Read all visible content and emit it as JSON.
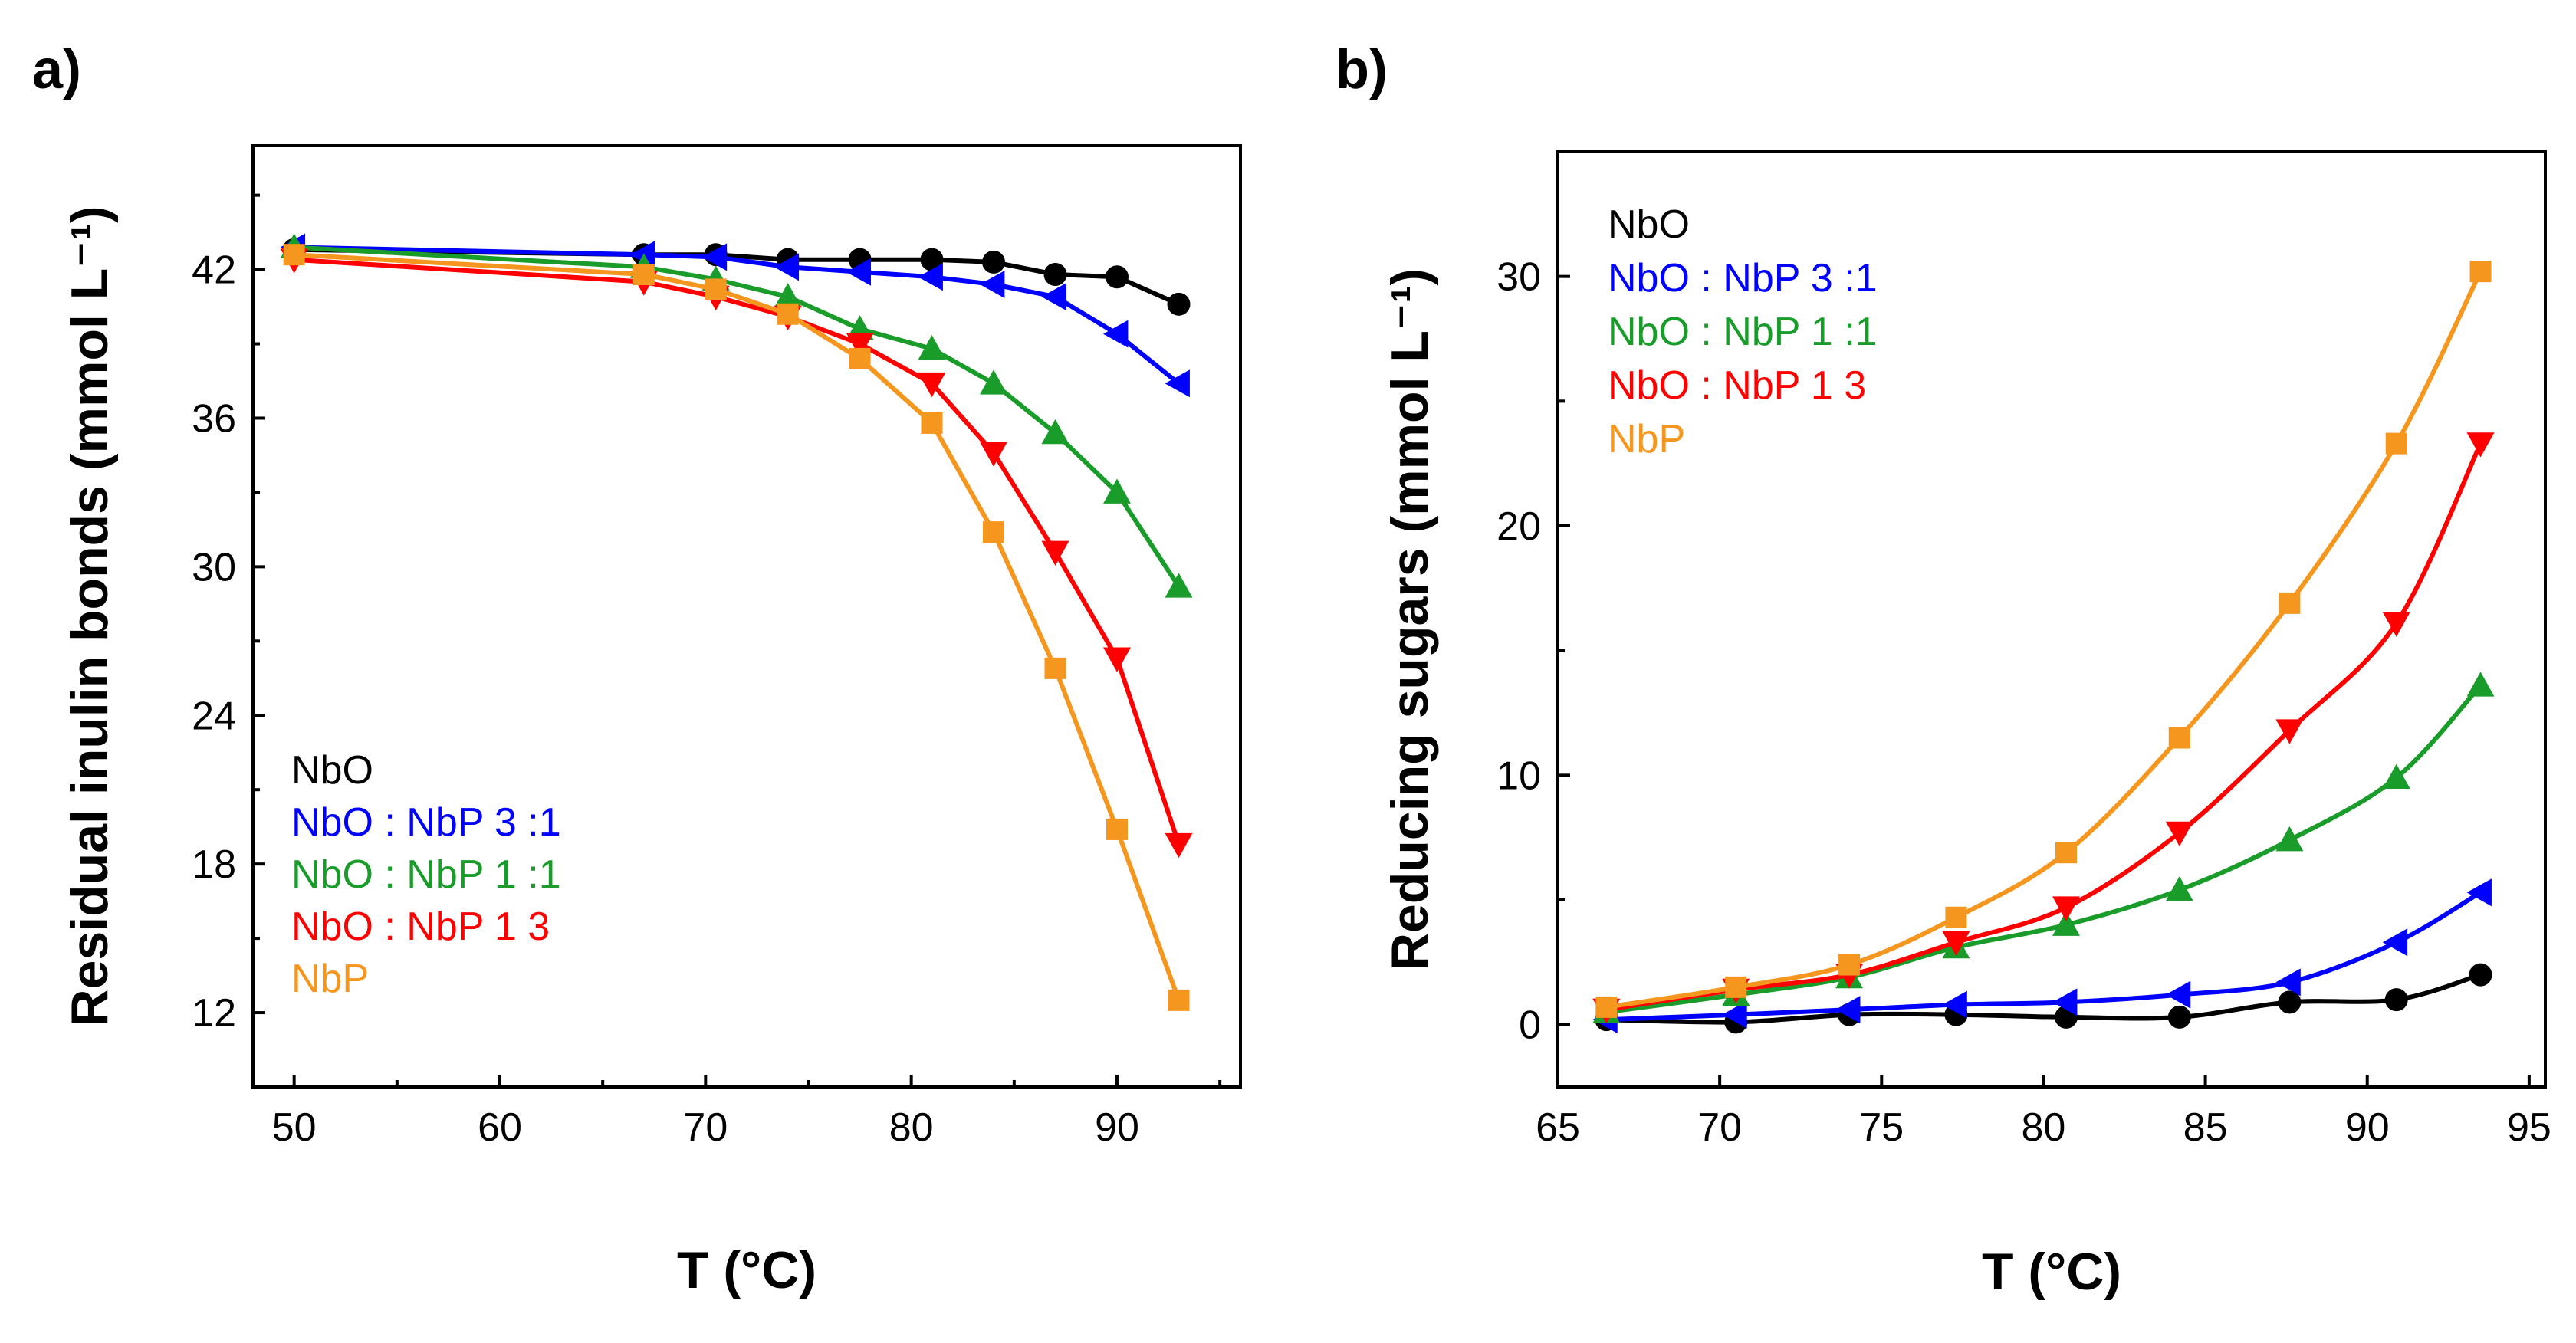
{
  "figure": {
    "panel_labels": [
      "a)",
      "b)"
    ]
  },
  "legend_entries": [
    {
      "key": "NbO",
      "label": "NbO",
      "color": "#000000",
      "marker": "circle"
    },
    {
      "key": "NbO31",
      "label": "NbO : NbP  3 :1",
      "color": "#0000ff",
      "marker": "triangle-left"
    },
    {
      "key": "NbO11",
      "label": "NbO : NbP  1 :1",
      "color": "#1a9c2a",
      "marker": "triangle-up"
    },
    {
      "key": "NbO13",
      "label": "NbO : NbP  1  3",
      "color": "#ff0000",
      "marker": "triangle-down"
    },
    {
      "key": "NbP",
      "label": "NbP",
      "color": "#f5961e",
      "marker": "square"
    }
  ],
  "chart_data": [
    {
      "panel": "a)",
      "type": "line",
      "title": "",
      "xlabel": "T (°C)",
      "ylabel": "Residual inulin bonds (mmol L⁻¹)",
      "xlim": [
        48,
        96
      ],
      "ylim": [
        9,
        47
      ],
      "xticks": [
        50,
        60,
        70,
        80,
        90
      ],
      "yticks": [
        12,
        18,
        24,
        30,
        36,
        42
      ],
      "legend_position": "lower-left",
      "grid": false,
      "series": [
        {
          "name": "NbO",
          "x": [
            50,
            67,
            70.5,
            74,
            77.5,
            81,
            84,
            87,
            90,
            93
          ],
          "y": [
            42.8,
            42.6,
            42.6,
            42.4,
            42.4,
            42.4,
            42.3,
            41.8,
            41.7,
            40.6
          ]
        },
        {
          "name": "NbO : NbP  3 :1",
          "x": [
            50,
            67,
            70.5,
            74,
            77.5,
            81,
            84,
            87,
            90,
            93
          ],
          "y": [
            42.9,
            42.6,
            42.5,
            42.1,
            41.9,
            41.7,
            41.4,
            40.9,
            39.4,
            37.4
          ]
        },
        {
          "name": "NbO : NbP  1 :1",
          "x": [
            50,
            67,
            70.5,
            74,
            77.5,
            81,
            84,
            87,
            90,
            93
          ],
          "y": [
            42.9,
            42.1,
            41.6,
            40.9,
            39.6,
            38.8,
            37.4,
            35.4,
            33.0,
            29.2
          ]
        },
        {
          "name": "NbO : NbP  1  3",
          "x": [
            50,
            67,
            70.5,
            74,
            77.5,
            81,
            84,
            87,
            90,
            93
          ],
          "y": [
            42.4,
            41.5,
            40.9,
            40.1,
            39.0,
            37.4,
            34.6,
            30.6,
            26.3,
            18.8
          ]
        },
        {
          "name": "NbP",
          "x": [
            50,
            67,
            70.5,
            74,
            77.5,
            81,
            84,
            87,
            90,
            93
          ],
          "y": [
            42.6,
            41.8,
            41.2,
            40.2,
            38.4,
            35.8,
            31.4,
            25.9,
            19.4,
            12.5
          ]
        }
      ]
    },
    {
      "panel": "b)",
      "type": "line",
      "title": "",
      "xlabel": "T (°C)",
      "ylabel": "Reducing sugars (mmol L⁻¹)",
      "xlim": [
        65,
        95.5
      ],
      "ylim": [
        -2.5,
        35
      ],
      "xticks": [
        65,
        70,
        75,
        80,
        85,
        90,
        95
      ],
      "yticks": [
        0,
        10,
        20,
        30
      ],
      "legend_position": "top-left",
      "grid": false,
      "series": [
        {
          "name": "NbO",
          "x": [
            66.5,
            70.5,
            74,
            77.3,
            80.7,
            84.2,
            87.6,
            90.9,
            93.5
          ],
          "y": [
            0.2,
            0.1,
            0.4,
            0.4,
            0.3,
            0.3,
            0.9,
            1.0,
            2.0
          ]
        },
        {
          "name": "NbO : NbP  3 :1",
          "x": [
            66.5,
            70.5,
            74,
            77.3,
            80.7,
            84.2,
            87.6,
            90.9,
            93.5
          ],
          "y": [
            0.2,
            0.4,
            0.6,
            0.8,
            0.9,
            1.2,
            1.7,
            3.3,
            5.3
          ]
        },
        {
          "name": "NbO : NbP  1 :1",
          "x": [
            66.5,
            70.5,
            74,
            77.3,
            80.7,
            84.2,
            87.6,
            90.9,
            93.5
          ],
          "y": [
            0.5,
            1.2,
            1.9,
            3.1,
            4.0,
            5.4,
            7.4,
            9.9,
            13.6
          ]
        },
        {
          "name": "NbO : NbP  1  3",
          "x": [
            66.5,
            70.5,
            74,
            77.3,
            80.7,
            84.2,
            87.6,
            90.9,
            93.5
          ],
          "y": [
            0.6,
            1.4,
            2.0,
            3.3,
            4.7,
            7.7,
            11.8,
            16.1,
            23.3
          ]
        },
        {
          "name": "NbP",
          "x": [
            66.5,
            70.5,
            74,
            77.3,
            80.7,
            84.2,
            87.6,
            90.9,
            93.5
          ],
          "y": [
            0.7,
            1.5,
            2.4,
            4.3,
            6.9,
            11.5,
            16.9,
            23.3,
            30.2
          ]
        }
      ]
    }
  ]
}
